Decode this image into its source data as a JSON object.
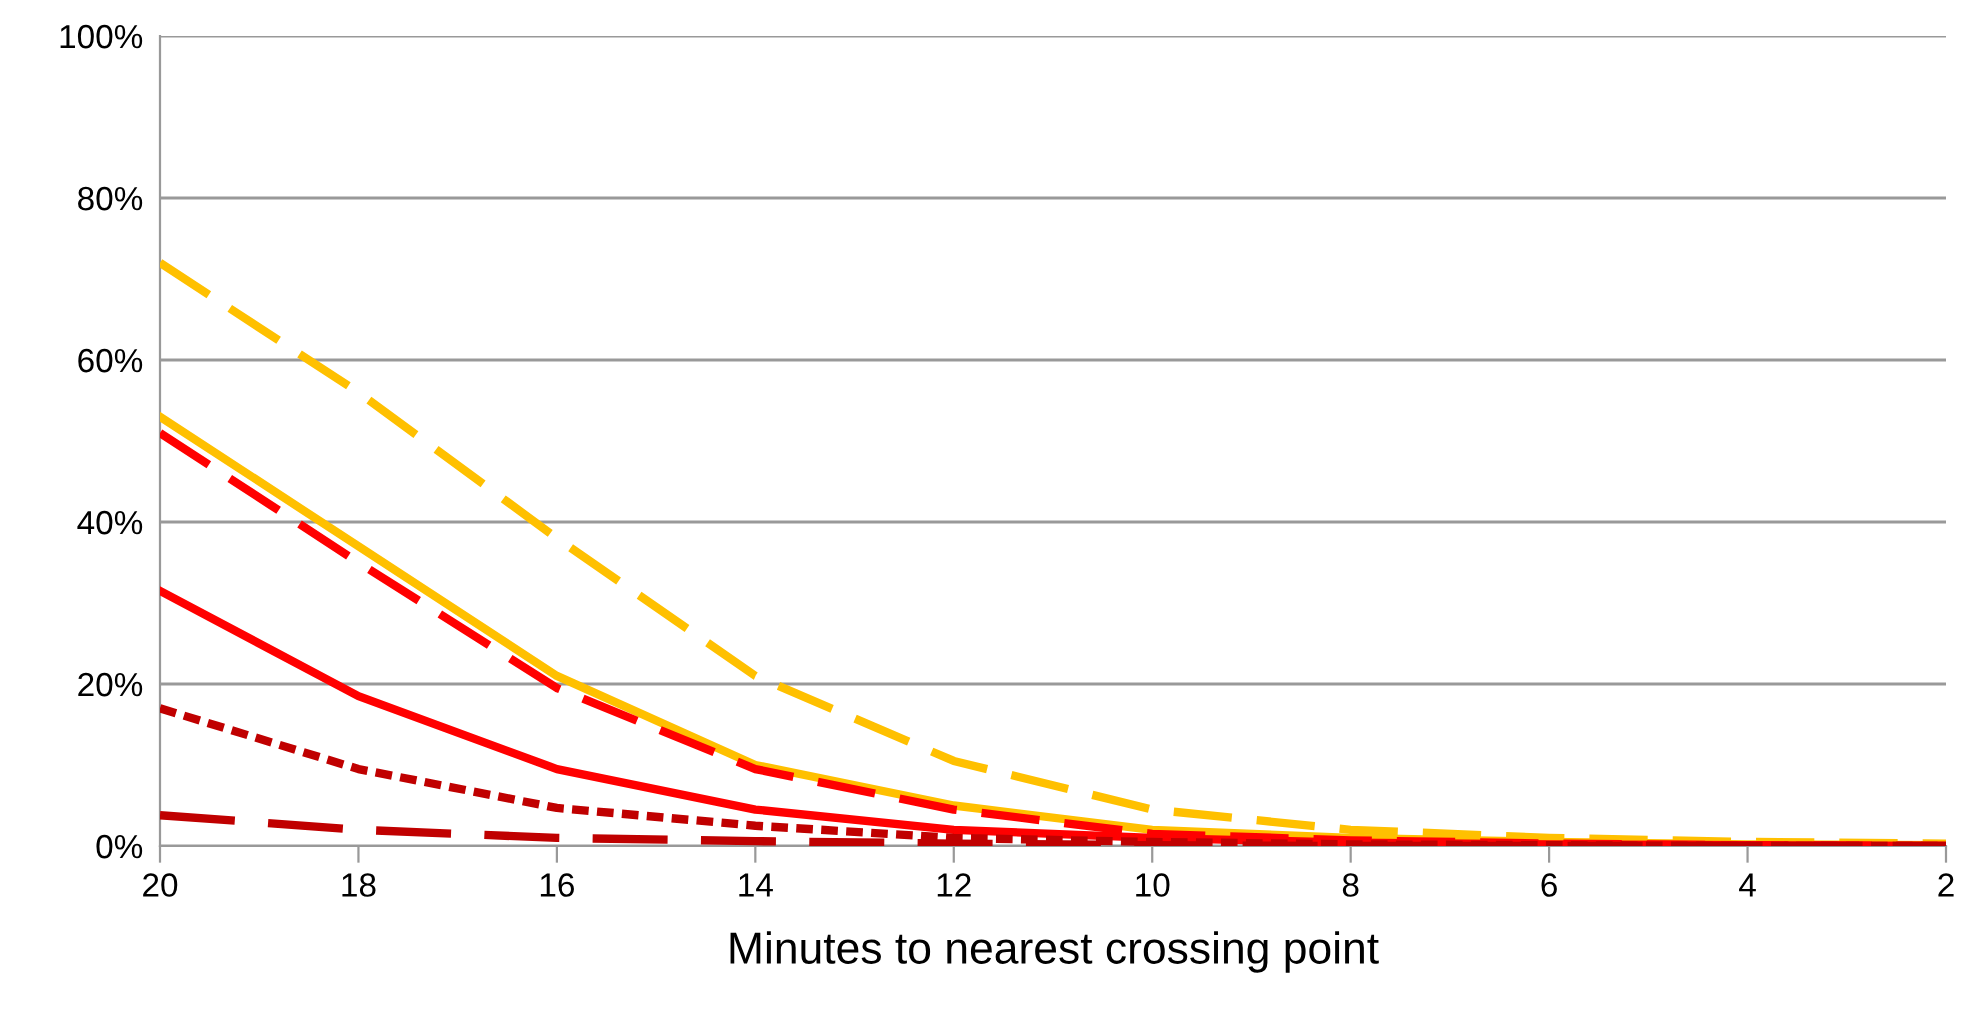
{
  "chart_data": {
    "type": "line",
    "xlabel": "Minutes to nearest crossing point",
    "x": [
      20,
      18,
      16,
      14,
      12,
      10,
      8,
      6,
      4,
      2
    ],
    "xlim": [
      20,
      2
    ],
    "xticks": [
      20,
      18,
      16,
      14,
      12,
      10,
      8,
      6,
      4,
      2
    ],
    "ylim": [
      0,
      100
    ],
    "yticks": [
      {
        "value": 0,
        "label": "0%"
      },
      {
        "value": 20,
        "label": "20%"
      },
      {
        "value": 40,
        "label": "40%"
      },
      {
        "value": 60,
        "label": "60%"
      },
      {
        "value": 80,
        "label": "80%"
      },
      {
        "value": 100,
        "label": "100%"
      }
    ],
    "grid": "y",
    "legend": false,
    "marker": "none",
    "series": [
      {
        "color": "#ffc000",
        "line_style": "dashed",
        "values": [
          72,
          56,
          38,
          21,
          10.5,
          4.5,
          2,
          1,
          0.5,
          0.3
        ]
      },
      {
        "color": "#ffc000",
        "line_style": "solid",
        "values": [
          53,
          37,
          21,
          10,
          5,
          2,
          1,
          0.5,
          0.2,
          0.1
        ]
      },
      {
        "color": "#ff0000",
        "line_style": "dashed",
        "values": [
          51,
          35,
          19.5,
          9.5,
          4.5,
          1.5,
          0.7,
          0.3,
          0.1,
          0
        ]
      },
      {
        "color": "#ff0000",
        "line_style": "solid",
        "values": [
          31.5,
          18.5,
          9.5,
          4.5,
          2,
          1,
          0.4,
          0.2,
          0.1,
          0
        ]
      },
      {
        "color": "#c00000",
        "line_style": "dotted",
        "values": [
          17,
          9.5,
          4.7,
          2.5,
          1,
          0.5,
          0.2,
          0.1,
          0,
          0
        ]
      },
      {
        "color": "#c00000",
        "line_style": "longdash",
        "values": [
          3.8,
          2,
          1,
          0.6,
          0.3,
          0.1,
          0,
          0,
          0,
          0
        ]
      }
    ]
  }
}
